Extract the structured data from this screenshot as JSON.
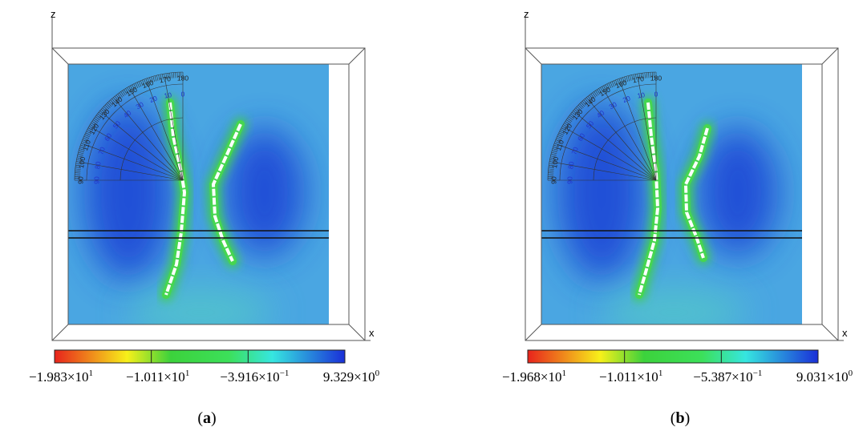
{
  "panels": [
    {
      "axes": {
        "z": "z",
        "x": "x"
      },
      "protractor": {
        "outer": [
          "90",
          "100",
          "110",
          "120",
          "130",
          "140",
          "150",
          "160",
          "170",
          "180"
        ],
        "inner": [
          "90",
          "80",
          "70",
          "60",
          "50",
          "40",
          "30",
          "20",
          "10",
          "0"
        ]
      },
      "colorbar": [
        {
          "coefficient": "−1.983×10",
          "exponent": "1"
        },
        {
          "coefficient": "−1.011×10",
          "exponent": "1"
        },
        {
          "coefficient": "−3.916×10",
          "exponent": "−1"
        },
        {
          "coefficient": "9.329×10",
          "exponent": "0"
        }
      ],
      "caption": {
        "open": "(",
        "letter": "a",
        "close": ")"
      }
    },
    {
      "axes": {
        "z": "z",
        "x": "x"
      },
      "protractor": {
        "outer": [
          "90",
          "100",
          "110",
          "120",
          "130",
          "140",
          "150",
          "160",
          "170",
          "180"
        ],
        "inner": [
          "90",
          "80",
          "70",
          "60",
          "50",
          "40",
          "30",
          "20",
          "10",
          "0"
        ]
      },
      "colorbar": [
        {
          "coefficient": "−1.968×10",
          "exponent": "1"
        },
        {
          "coefficient": "−1.011×10",
          "exponent": "1"
        },
        {
          "coefficient": "−5.387×10",
          "exponent": "−1"
        },
        {
          "coefficient": "9.031×10",
          "exponent": "0"
        }
      ],
      "caption": {
        "open": "(",
        "letter": "b",
        "close": ")"
      }
    }
  ]
}
